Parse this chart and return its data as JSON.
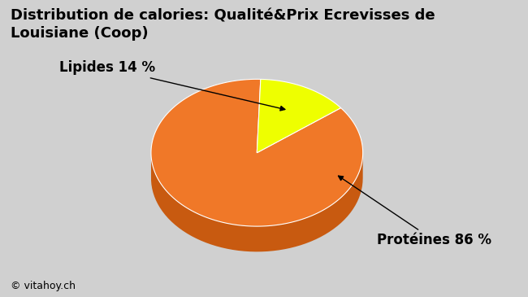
{
  "title": "Distribution de calories: Qualité&Prix Ecrevisses de\nLouisiane (Coop)",
  "slices": [
    86,
    14
  ],
  "labels": [
    "Protéines 86 %",
    "Lipides 14 %"
  ],
  "top_colors": [
    "#F07828",
    "#EEFF00"
  ],
  "side_colors": [
    "#C85A10",
    "#C8A000"
  ],
  "annotation_bottom": "© vitahoy.ch",
  "background_color_top": "#D0D0D0",
  "background_color_bottom": "#B8B8B8",
  "title_fontsize": 13,
  "label_fontsize": 12
}
